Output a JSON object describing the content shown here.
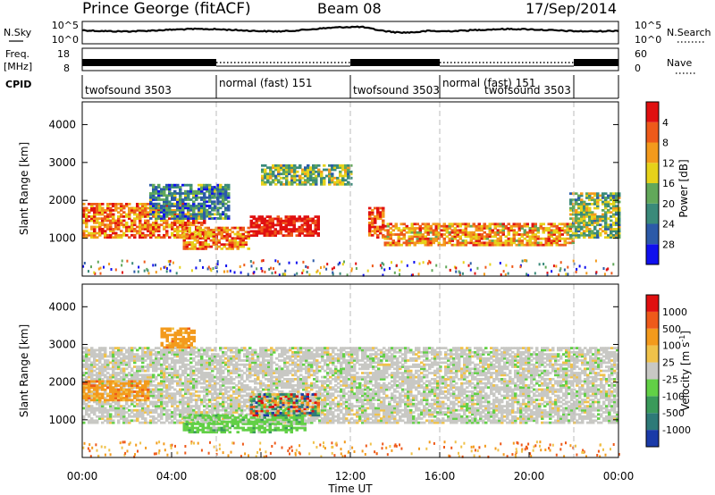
{
  "header": {
    "station": "Prince George (fitACF)",
    "beam": "Beam 08",
    "date": "17/Sep/2014"
  },
  "strips": {
    "nsky_label": "N.Sky",
    "nsky_ticks": [
      "10^5",
      "10^0"
    ],
    "nsearch_label": "N.Search",
    "nsearch_ticks": [
      "10^5",
      "10^0"
    ],
    "freq_label": "Freq.",
    "freq_unit": "[MHz]",
    "freq_ticks": [
      "18",
      "8"
    ],
    "nave_label": "Nave",
    "nave_ticks": [
      "60",
      "0"
    ],
    "cpid_label": "CPID"
  },
  "cpid_segments": [
    {
      "name": "twofsound 3503",
      "start": 0.0,
      "end": 6.0,
      "row": 1
    },
    {
      "name": "normal (fast) 151",
      "start": 6.0,
      "end": 12.0,
      "row": 0
    },
    {
      "name": "twofsound 3503",
      "start": 12.0,
      "end": 16.0,
      "row": 1
    },
    {
      "name": "normal (fast) 151",
      "start": 16.0,
      "end": 22.0,
      "row": 0
    },
    {
      "name": "twofsound 3503",
      "start": 16.0,
      "end": 22.0,
      "row": 1
    }
  ],
  "chart_data": [
    {
      "type": "heatmap",
      "title": "",
      "xlabel": "",
      "ylabel": "Slant Range [km]",
      "xlim": [
        0,
        24
      ],
      "ylim": [
        0,
        4600
      ],
      "yticks": [
        "1000",
        "2000",
        "3000",
        "4000"
      ],
      "colorbar": {
        "label": "Power [dB]",
        "ticks": [
          "4",
          "8",
          "12",
          "16",
          "20",
          "24",
          "28"
        ],
        "colors": [
          "#1010ee",
          "#2c5aa8",
          "#3a8a7a",
          "#62a85a",
          "#e6d21a",
          "#f39a1c",
          "#ee5a1a",
          "#e01010"
        ]
      },
      "features": [
        {
          "name": "lower band",
          "t0": 0,
          "t1": 5.5,
          "r0": 1000,
          "r1": 1900,
          "level": 0.75
        },
        {
          "name": "growing band",
          "t0": 3,
          "t1": 6.5,
          "r0": 1500,
          "r1": 2400,
          "level": 0.3
        },
        {
          "name": "hot patch",
          "t0": 7.5,
          "t1": 10.5,
          "r0": 1050,
          "r1": 1550,
          "level": 0.98
        },
        {
          "name": "rising band",
          "t0": 4.5,
          "t1": 7.5,
          "r0": 700,
          "r1": 1300,
          "level": 0.75
        },
        {
          "name": "arc",
          "t0": 8.0,
          "t1": 12.0,
          "r0": 2400,
          "r1": 2900,
          "level": 0.45
        },
        {
          "name": "spot",
          "t0": 12.8,
          "t1": 13.5,
          "r0": 1000,
          "r1": 1800,
          "level": 0.85
        },
        {
          "name": "evening band",
          "t0": 13.5,
          "t1": 22,
          "r0": 800,
          "r1": 1400,
          "level": 0.7
        },
        {
          "name": "late blue",
          "t0": 21.8,
          "t1": 24,
          "r0": 1000,
          "r1": 2200,
          "level": 0.45
        }
      ]
    },
    {
      "type": "heatmap",
      "title": "",
      "xlabel": "Time UT",
      "ylabel": "Slant Range [km]",
      "xlim": [
        0,
        24
      ],
      "ylim": [
        0,
        4600
      ],
      "yticks": [
        "1000",
        "2000",
        "3000",
        "4000"
      ],
      "xticks": [
        "00:00",
        "04:00",
        "08:00",
        "12:00",
        "16:00",
        "20:00",
        "00:00"
      ],
      "colorbar": {
        "label": "Velocity [m s",
        "label_sup": "-1",
        "label_end": "]",
        "ticks": [
          "1000",
          "500",
          "100",
          "25",
          "-25",
          "-100",
          "-500",
          "-1000"
        ],
        "colors": [
          "#1a3aa8",
          "#2e7a78",
          "#3a9a5a",
          "#62d046",
          "#c8c8c4",
          "#f0c24a",
          "#f39a1c",
          "#ee5a1a",
          "#e01010"
        ]
      },
      "features": [
        {
          "name": "ground scatter",
          "t0": 0,
          "t1": 24,
          "r0": 900,
          "r1": 2900,
          "level": "grey"
        },
        {
          "name": "orange band",
          "t0": 0,
          "t1": 3,
          "r0": 1500,
          "r1": 2000,
          "level": "orange"
        },
        {
          "name": "green band",
          "t0": 4.5,
          "t1": 10,
          "r0": 650,
          "r1": 1100,
          "level": "green"
        },
        {
          "name": "mixed patch",
          "t0": 7.5,
          "t1": 10.5,
          "r0": 1100,
          "r1": 1700,
          "level": "mixed"
        },
        {
          "name": "upper",
          "t0": 3.5,
          "t1": 5,
          "r0": 2900,
          "r1": 3400,
          "level": "orange"
        }
      ]
    }
  ],
  "time_axis_label": "Time UT"
}
